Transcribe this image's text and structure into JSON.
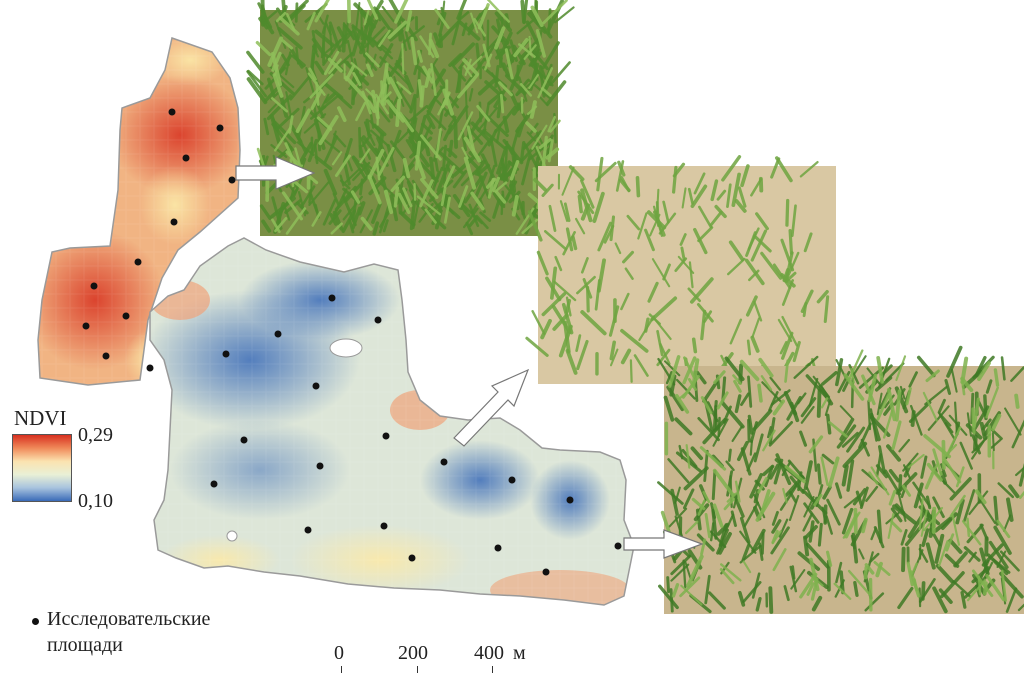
{
  "legend": {
    "ndvi_title": "NDVI",
    "max_label": "0,29",
    "min_label": "0,10",
    "ndvi_max": 0.29,
    "ndvi_min": 0.1,
    "ramp_colors": [
      "#d7301f",
      "#f08a5a",
      "#fbe3b0",
      "#e9f0d6",
      "#a8c3de",
      "#3a6bb8"
    ],
    "points_label_line1": "Исследовательские",
    "points_label_line2": "площади"
  },
  "scale_bar": {
    "label_0": "0",
    "label_200": "200",
    "label_400": "400",
    "unit": "м"
  },
  "colors": {
    "high_ndvi": "#e06a4c",
    "mid_ndvi": "#f6eec6",
    "low_ndvi": "#6f96c9",
    "sample_point": "#111111",
    "arrow_fill": "#ffffff",
    "field_outline": "#9a9a9a"
  },
  "photos": [
    {
      "name": "dense-wheat-photo",
      "ground": "#6f8a3e",
      "plant": "#4f8a2c"
    },
    {
      "name": "sparse-seedlings-photo",
      "ground": "#d8c9a6",
      "plant": "#6fa541"
    },
    {
      "name": "medium-wheat-photo",
      "ground": "#c7b48c",
      "plant": "#3f7a25"
    }
  ]
}
